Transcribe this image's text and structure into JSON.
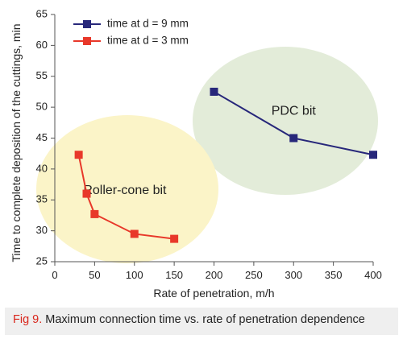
{
  "chart_data": {
    "type": "scatter",
    "xlabel": "Rate of penetration, m/h",
    "ylabel": "Time to complete deposition of the cuttings, min",
    "xlim": [
      0,
      400
    ],
    "ylim": [
      25,
      65
    ],
    "x_ticks": [
      "0",
      "50",
      "100",
      "150",
      "200",
      "250",
      "300",
      "350",
      "400"
    ],
    "y_ticks": [
      "25",
      "30",
      "35",
      "40",
      "45",
      "50",
      "55",
      "60",
      "65"
    ],
    "grid": false,
    "legend_position": "top-left",
    "series": [
      {
        "name": "time at d = 9 mm",
        "color": "#27277a",
        "marker": "square",
        "x": [
          200,
          300,
          400
        ],
        "y": [
          52.5,
          45.0,
          42.3
        ]
      },
      {
        "name": "time at d = 3 mm",
        "color": "#e8382a",
        "marker": "square",
        "x": [
          30,
          40,
          50,
          100,
          150
        ],
        "y": [
          42.3,
          36.0,
          32.7,
          29.5,
          28.7
        ]
      }
    ],
    "annotations": [
      {
        "text": "PDC bit",
        "x": 300,
        "y": 49.3,
        "fill": "#e3ecd9"
      },
      {
        "text": "Roller-cone bit",
        "x": 88,
        "y": 36.5,
        "fill": "#fbf4c8"
      }
    ]
  },
  "caption": {
    "label": "Fig 9.",
    "text": " Maximum connection time vs. rate of penetration dependence"
  }
}
